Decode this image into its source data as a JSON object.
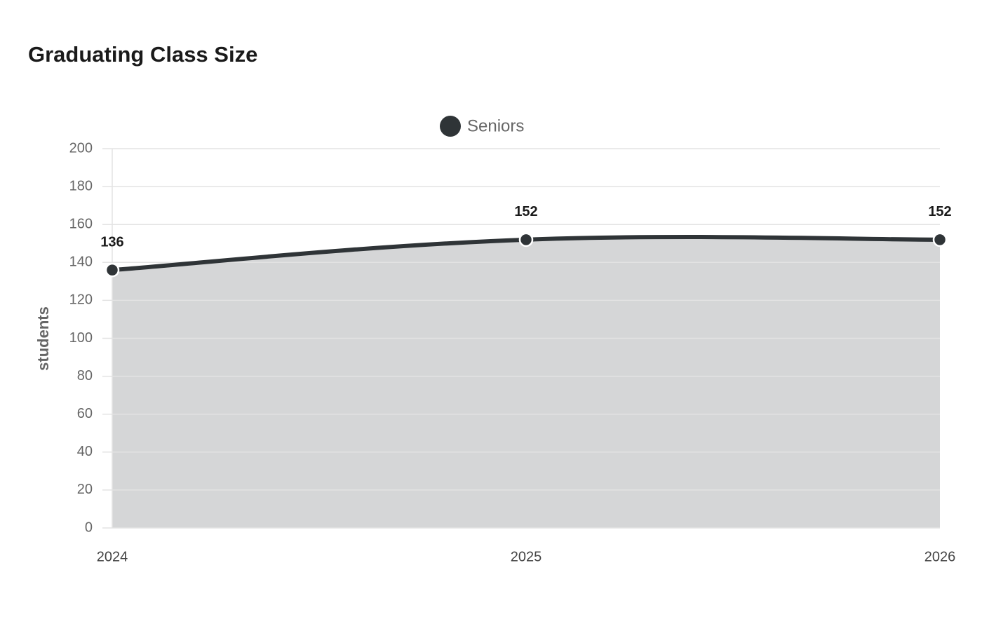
{
  "chart_data": {
    "type": "line",
    "title": "Graduating Class Size",
    "y_label": "students",
    "categories": [
      "2024",
      "2025",
      "2026"
    ],
    "series": [
      {
        "name": "Seniors",
        "color": "#2f3437",
        "values": [
          136,
          152,
          152
        ]
      }
    ],
    "ylim": [
      0,
      200
    ],
    "yticks": [
      0,
      20,
      40,
      60,
      80,
      100,
      120,
      140,
      160,
      180,
      200
    ],
    "grid": true,
    "fill": true,
    "legend": "top",
    "data_labels": true
  }
}
